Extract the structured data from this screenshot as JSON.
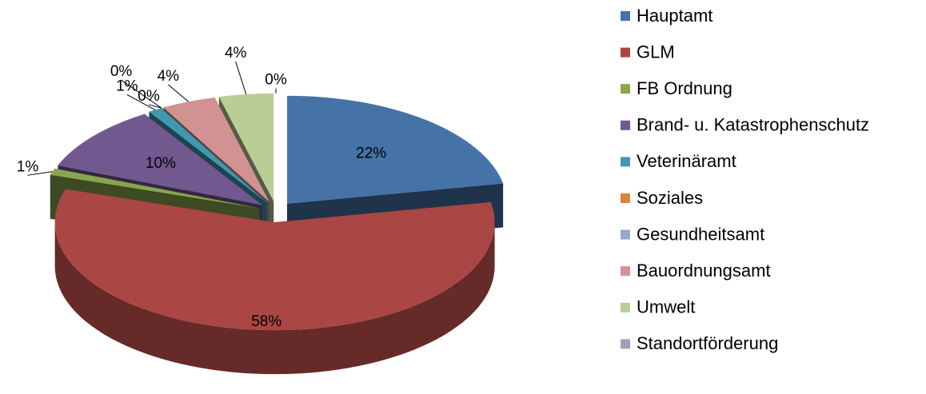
{
  "chart_data": {
    "type": "pie3d",
    "categories": [
      "Hauptamt",
      "GLM",
      "FB Ordnung",
      "Brand- u. Katastrophenschutz",
      "Veterinäramt",
      "Soziales",
      "Gesundheitsamt",
      "Bauordnungsamt",
      "Umwelt",
      "Standortförderung"
    ],
    "values": [
      22,
      58,
      1,
      10,
      1,
      0,
      0,
      4,
      4,
      0
    ],
    "value_labels": [
      "22%",
      "58%",
      "1%",
      "10%",
      "1%",
      "0%",
      "0%",
      "4%",
      "4%",
      "0%"
    ],
    "colors": [
      "#4572a7",
      "#aa4643",
      "#89a54e",
      "#71588f",
      "#4198af",
      "#db843d",
      "#93a9cf",
      "#d19392",
      "#b9cd96",
      "#a99bbd"
    ],
    "legend": "right"
  }
}
